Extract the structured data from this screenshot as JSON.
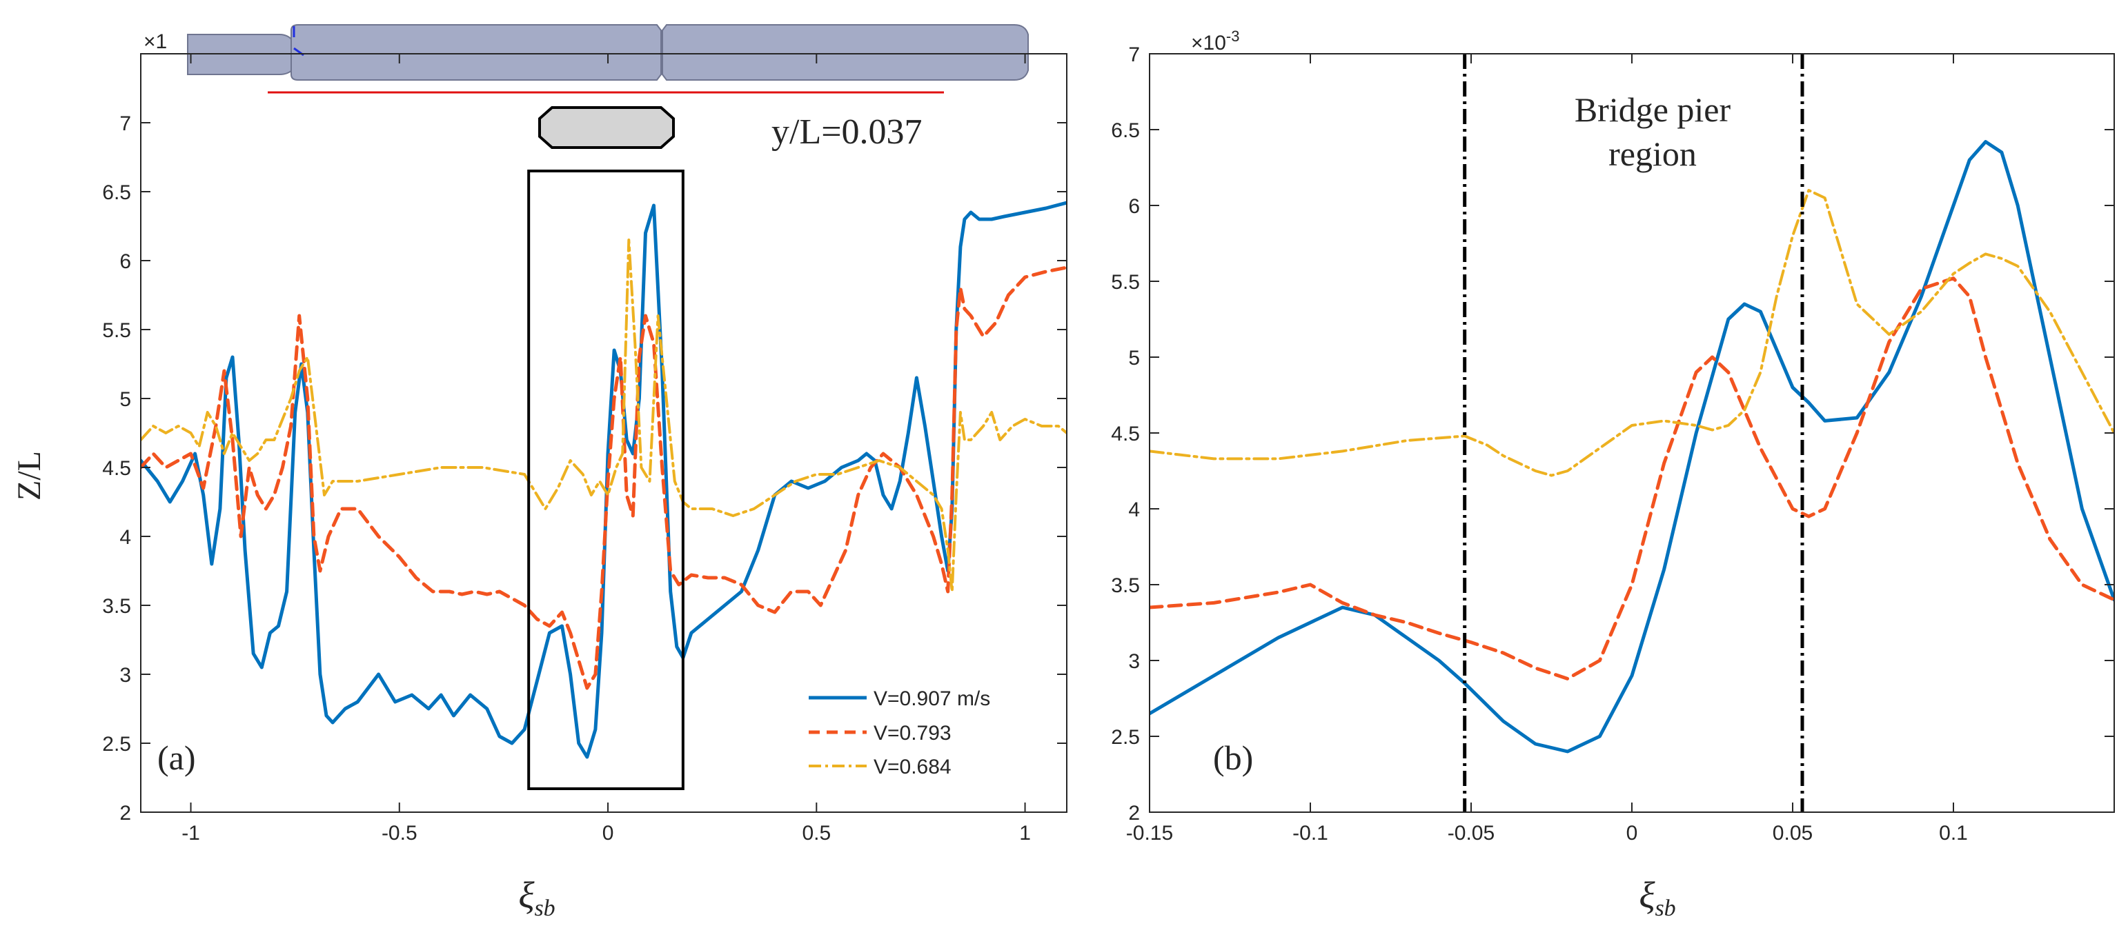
{
  "chart_data": [
    {
      "type": "line",
      "panel_label": "(a)",
      "xlabel": "ξ",
      "xlabel_sub": "sb",
      "ylabel": "Z/L",
      "xlim": [
        -1.12,
        1.1
      ],
      "ylim": [
        2,
        7.5
      ],
      "xticks": [
        -1,
        -0.5,
        0,
        0.5,
        1
      ],
      "xtick_labels": [
        "-1",
        "-0.5",
        "0",
        "0.5",
        "1"
      ],
      "yticks": [
        2,
        2.5,
        3,
        3.5,
        4,
        4.5,
        5,
        5.5,
        6,
        6.5,
        7
      ],
      "ytick_labels": [
        "2",
        "2.5",
        "3",
        "3.5",
        "4",
        "4.5",
        "5",
        "5.5",
        "6",
        "6.5",
        "7"
      ],
      "y_multiplier": "×1",
      "annotation": "y/L=0.037",
      "legend_position": "bottom-right",
      "grid": false,
      "highlight_box_x": [
        -0.19,
        0.18
      ],
      "highlight_box_y": [
        2.17,
        6.65
      ],
      "series": [
        {
          "name": "V=0.907 m/s",
          "color": "#0072BD",
          "dash": "solid",
          "x": [
            -1.12,
            -1.08,
            -1.05,
            -1.02,
            -0.99,
            -0.97,
            -0.95,
            -0.93,
            -0.915,
            -0.9,
            -0.885,
            -0.87,
            -0.85,
            -0.83,
            -0.81,
            -0.79,
            -0.77,
            -0.75,
            -0.735,
            -0.72,
            -0.705,
            -0.69,
            -0.675,
            -0.66,
            -0.63,
            -0.6,
            -0.55,
            -0.51,
            -0.47,
            -0.43,
            -0.4,
            -0.37,
            -0.33,
            -0.29,
            -0.26,
            -0.23,
            -0.2,
            -0.17,
            -0.14,
            -0.11,
            -0.09,
            -0.07,
            -0.05,
            -0.03,
            -0.015,
            0,
            0.015,
            0.03,
            0.045,
            0.06,
            0.075,
            0.09,
            0.11,
            0.13,
            0.15,
            0.165,
            0.18,
            0.2,
            0.24,
            0.28,
            0.32,
            0.36,
            0.4,
            0.44,
            0.48,
            0.52,
            0.56,
            0.6,
            0.62,
            0.64,
            0.66,
            0.68,
            0.7,
            0.72,
            0.74,
            0.76,
            0.78,
            0.8,
            0.815,
            0.825,
            0.835,
            0.845,
            0.855,
            0.87,
            0.89,
            0.92,
            0.95,
            1,
            1.05,
            1.1
          ],
          "y": [
            4.55,
            4.4,
            4.25,
            4.4,
            4.6,
            4.3,
            3.8,
            4.2,
            5.15,
            5.3,
            4.7,
            3.9,
            3.15,
            3.05,
            3.3,
            3.35,
            3.6,
            4.9,
            5.25,
            4.9,
            3.9,
            3.0,
            2.7,
            2.65,
            2.75,
            2.8,
            3.0,
            2.8,
            2.85,
            2.75,
            2.85,
            2.7,
            2.85,
            2.75,
            2.55,
            2.5,
            2.6,
            2.95,
            3.3,
            3.35,
            3.0,
            2.5,
            2.4,
            2.6,
            3.3,
            4.6,
            5.35,
            5.2,
            4.7,
            4.6,
            5.0,
            6.2,
            6.4,
            5.2,
            3.6,
            3.2,
            3.12,
            3.3,
            3.4,
            3.5,
            3.6,
            3.9,
            4.3,
            4.4,
            4.35,
            4.4,
            4.5,
            4.55,
            4.6,
            4.55,
            4.3,
            4.2,
            4.4,
            4.75,
            5.15,
            4.8,
            4.4,
            4.0,
            3.75,
            4.2,
            5.5,
            6.1,
            6.3,
            6.35,
            6.3,
            6.3,
            6.32,
            6.35,
            6.38,
            6.42
          ]
        },
        {
          "name": "V=0.793",
          "color": "#F2531F",
          "dash": "dashed",
          "x": [
            -1.12,
            -1.09,
            -1.06,
            -1.03,
            -1.0,
            -0.97,
            -0.94,
            -0.92,
            -0.9,
            -0.88,
            -0.86,
            -0.84,
            -0.82,
            -0.8,
            -0.78,
            -0.76,
            -0.74,
            -0.72,
            -0.705,
            -0.69,
            -0.67,
            -0.64,
            -0.6,
            -0.55,
            -0.5,
            -0.46,
            -0.42,
            -0.38,
            -0.35,
            -0.32,
            -0.29,
            -0.26,
            -0.23,
            -0.2,
            -0.17,
            -0.14,
            -0.11,
            -0.09,
            -0.07,
            -0.05,
            -0.03,
            -0.015,
            0,
            0.015,
            0.03,
            0.045,
            0.06,
            0.075,
            0.09,
            0.11,
            0.13,
            0.15,
            0.17,
            0.2,
            0.24,
            0.28,
            0.32,
            0.36,
            0.4,
            0.44,
            0.48,
            0.51,
            0.54,
            0.57,
            0.6,
            0.63,
            0.66,
            0.7,
            0.74,
            0.78,
            0.8,
            0.815,
            0.825,
            0.835,
            0.845,
            0.855,
            0.87,
            0.9,
            0.93,
            0.96,
            1.0,
            1.05,
            1.1
          ],
          "y": [
            4.5,
            4.6,
            4.5,
            4.55,
            4.6,
            4.35,
            4.8,
            5.2,
            4.7,
            4.0,
            4.5,
            4.3,
            4.2,
            4.3,
            4.5,
            4.8,
            5.6,
            5.0,
            4.0,
            3.75,
            4.0,
            4.2,
            4.2,
            4.0,
            3.85,
            3.7,
            3.6,
            3.6,
            3.58,
            3.6,
            3.58,
            3.6,
            3.55,
            3.5,
            3.4,
            3.35,
            3.45,
            3.3,
            3.1,
            2.9,
            3.0,
            3.6,
            4.4,
            5.0,
            5.3,
            4.3,
            4.15,
            5.3,
            5.6,
            5.4,
            4.5,
            3.75,
            3.65,
            3.72,
            3.7,
            3.7,
            3.65,
            3.5,
            3.45,
            3.6,
            3.6,
            3.5,
            3.7,
            3.9,
            4.3,
            4.5,
            4.6,
            4.5,
            4.3,
            4.0,
            3.8,
            3.6,
            4.3,
            5.5,
            5.8,
            5.65,
            5.6,
            5.45,
            5.55,
            5.75,
            5.88,
            5.92,
            5.95
          ]
        },
        {
          "name": "V=0.684",
          "color": "#EDB120",
          "dash": "dashdot",
          "x": [
            -1.12,
            -1.09,
            -1.06,
            -1.03,
            -1.0,
            -0.98,
            -0.96,
            -0.94,
            -0.92,
            -0.9,
            -0.88,
            -0.86,
            -0.84,
            -0.82,
            -0.8,
            -0.78,
            -0.76,
            -0.74,
            -0.72,
            -0.7,
            -0.68,
            -0.66,
            -0.6,
            -0.5,
            -0.4,
            -0.3,
            -0.2,
            -0.15,
            -0.12,
            -0.09,
            -0.06,
            -0.04,
            -0.02,
            0,
            0.02,
            0.035,
            0.05,
            0.065,
            0.08,
            0.1,
            0.12,
            0.14,
            0.16,
            0.18,
            0.2,
            0.25,
            0.3,
            0.35,
            0.4,
            0.45,
            0.5,
            0.55,
            0.6,
            0.65,
            0.7,
            0.74,
            0.78,
            0.8,
            0.815,
            0.825,
            0.835,
            0.845,
            0.855,
            0.87,
            0.9,
            0.92,
            0.94,
            0.97,
            1.0,
            1.04,
            1.08,
            1.1
          ],
          "y": [
            4.7,
            4.8,
            4.75,
            4.8,
            4.75,
            4.65,
            4.9,
            4.8,
            4.6,
            4.75,
            4.65,
            4.55,
            4.6,
            4.7,
            4.7,
            4.85,
            5.0,
            5.2,
            5.3,
            4.8,
            4.3,
            4.4,
            4.4,
            4.45,
            4.5,
            4.5,
            4.45,
            4.2,
            4.35,
            4.55,
            4.45,
            4.3,
            4.4,
            4.3,
            4.5,
            4.6,
            6.15,
            5.4,
            4.5,
            4.4,
            5.6,
            5.0,
            4.4,
            4.25,
            4.2,
            4.2,
            4.15,
            4.2,
            4.3,
            4.4,
            4.45,
            4.45,
            4.5,
            4.55,
            4.5,
            4.4,
            4.3,
            4.2,
            3.9,
            3.6,
            4.3,
            4.9,
            4.7,
            4.7,
            4.8,
            4.9,
            4.7,
            4.8,
            4.85,
            4.8,
            4.8,
            4.75
          ]
        }
      ]
    },
    {
      "type": "line",
      "panel_label": "(b)",
      "xlabel": "ξ",
      "xlabel_sub": "sb",
      "ylabel": "",
      "xlim": [
        -0.15,
        0.15
      ],
      "ylim": [
        2,
        7
      ],
      "xticks": [
        -0.15,
        -0.1,
        -0.05,
        0,
        0.05,
        0.1
      ],
      "xtick_labels": [
        "-0.15",
        "-0.1",
        "-0.05",
        "0",
        "0.05",
        "0.1"
      ],
      "yticks": [
        2,
        2.5,
        3,
        3.5,
        4,
        4.5,
        5,
        5.5,
        6,
        6.5,
        7
      ],
      "ytick_labels": [
        "2",
        "2.5",
        "3",
        "3.5",
        "4",
        "4.5",
        "5",
        "5.5",
        "6",
        "6.5",
        "7"
      ],
      "y_multiplier_base": "×10",
      "y_multiplier_exp": "-3",
      "annotation": [
        "Bridge pier",
        "region"
      ],
      "vlines": [
        -0.052,
        0.053
      ],
      "grid": false,
      "series": [
        {
          "name": "V=0.907 m/s",
          "color": "#0072BD",
          "dash": "solid",
          "x": [
            -0.15,
            -0.13,
            -0.11,
            -0.09,
            -0.08,
            -0.07,
            -0.06,
            -0.052,
            -0.04,
            -0.03,
            -0.02,
            -0.01,
            0,
            0.01,
            0.02,
            0.03,
            0.035,
            0.04,
            0.045,
            0.05,
            0.055,
            0.06,
            0.07,
            0.08,
            0.09,
            0.1,
            0.105,
            0.11,
            0.115,
            0.12,
            0.13,
            0.14,
            0.15
          ],
          "y": [
            2.65,
            2.9,
            3.15,
            3.35,
            3.3,
            3.15,
            3.0,
            2.85,
            2.6,
            2.45,
            2.4,
            2.5,
            2.9,
            3.6,
            4.5,
            5.25,
            5.35,
            5.3,
            5.05,
            4.8,
            4.7,
            4.58,
            4.6,
            4.9,
            5.4,
            6.0,
            6.3,
            6.42,
            6.35,
            6.0,
            5.0,
            4.0,
            3.4
          ]
        },
        {
          "name": "V=0.793",
          "color": "#F2531F",
          "dash": "dashed",
          "x": [
            -0.15,
            -0.13,
            -0.11,
            -0.1,
            -0.09,
            -0.08,
            -0.07,
            -0.06,
            -0.05,
            -0.04,
            -0.03,
            -0.02,
            -0.01,
            0,
            0.01,
            0.02,
            0.025,
            0.03,
            0.04,
            0.05,
            0.055,
            0.06,
            0.07,
            0.08,
            0.09,
            0.1,
            0.105,
            0.11,
            0.12,
            0.13,
            0.14,
            0.15
          ],
          "y": [
            3.35,
            3.38,
            3.45,
            3.5,
            3.38,
            3.3,
            3.25,
            3.18,
            3.12,
            3.05,
            2.95,
            2.88,
            3.0,
            3.5,
            4.3,
            4.9,
            5.0,
            4.9,
            4.4,
            4.0,
            3.95,
            4.0,
            4.5,
            5.1,
            5.45,
            5.52,
            5.4,
            5.0,
            4.3,
            3.8,
            3.5,
            3.4
          ]
        },
        {
          "name": "V=0.684",
          "color": "#EDB120",
          "dash": "dashdot",
          "x": [
            -0.15,
            -0.13,
            -0.11,
            -0.09,
            -0.07,
            -0.052,
            -0.045,
            -0.04,
            -0.03,
            -0.025,
            -0.02,
            -0.01,
            0,
            0.01,
            0.02,
            0.025,
            0.03,
            0.035,
            0.04,
            0.045,
            0.05,
            0.055,
            0.06,
            0.065,
            0.07,
            0.08,
            0.09,
            0.1,
            0.105,
            0.11,
            0.115,
            0.12,
            0.13,
            0.14,
            0.15
          ],
          "y": [
            4.38,
            4.33,
            4.33,
            4.38,
            4.45,
            4.48,
            4.42,
            4.35,
            4.25,
            4.22,
            4.25,
            4.4,
            4.55,
            4.58,
            4.55,
            4.52,
            4.55,
            4.65,
            4.9,
            5.4,
            5.8,
            6.1,
            6.05,
            5.7,
            5.35,
            5.15,
            5.3,
            5.55,
            5.62,
            5.68,
            5.65,
            5.6,
            5.3,
            4.9,
            4.5
          ]
        }
      ]
    }
  ]
}
